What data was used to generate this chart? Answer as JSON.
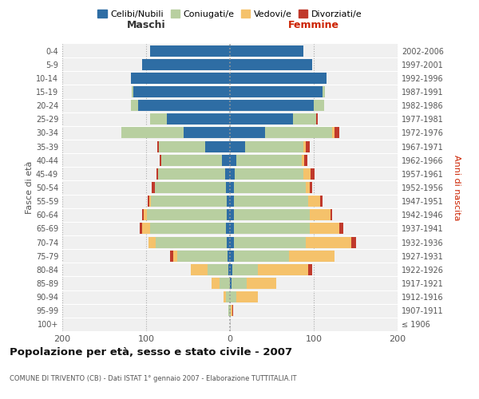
{
  "age_groups": [
    "100+",
    "95-99",
    "90-94",
    "85-89",
    "80-84",
    "75-79",
    "70-74",
    "65-69",
    "60-64",
    "55-59",
    "50-54",
    "45-49",
    "40-44",
    "35-39",
    "30-34",
    "25-29",
    "20-24",
    "15-19",
    "10-14",
    "5-9",
    "0-4"
  ],
  "birth_years": [
    "≤ 1906",
    "1907-1911",
    "1912-1916",
    "1917-1921",
    "1922-1926",
    "1927-1931",
    "1932-1936",
    "1937-1941",
    "1942-1946",
    "1947-1951",
    "1952-1956",
    "1957-1961",
    "1962-1966",
    "1967-1971",
    "1972-1976",
    "1977-1981",
    "1982-1986",
    "1987-1991",
    "1992-1996",
    "1997-2001",
    "2002-2006"
  ],
  "male": {
    "celibi": [
      0,
      0,
      0,
      0,
      2,
      3,
      4,
      5,
      4,
      4,
      5,
      6,
      10,
      30,
      55,
      75,
      110,
      115,
      118,
      105,
      95
    ],
    "coniugati": [
      0,
      2,
      5,
      12,
      25,
      60,
      85,
      90,
      95,
      90,
      85,
      80,
      72,
      55,
      75,
      20,
      8,
      2,
      0,
      0,
      0
    ],
    "vedovi": [
      0,
      0,
      3,
      10,
      20,
      5,
      8,
      10,
      4,
      2,
      0,
      0,
      0,
      0,
      0,
      0,
      0,
      0,
      0,
      0,
      0
    ],
    "divorziati": [
      0,
      0,
      0,
      0,
      0,
      3,
      0,
      3,
      2,
      2,
      3,
      2,
      2,
      2,
      0,
      0,
      0,
      0,
      0,
      0,
      0
    ]
  },
  "female": {
    "nubili": [
      0,
      0,
      0,
      2,
      3,
      5,
      5,
      5,
      5,
      5,
      5,
      6,
      8,
      18,
      42,
      75,
      100,
      110,
      115,
      98,
      88
    ],
    "coniugate": [
      0,
      1,
      8,
      18,
      30,
      65,
      85,
      90,
      90,
      88,
      85,
      82,
      78,
      70,
      80,
      28,
      12,
      3,
      0,
      0,
      0
    ],
    "vedove": [
      0,
      2,
      25,
      35,
      60,
      55,
      55,
      35,
      25,
      15,
      5,
      8,
      3,
      2,
      3,
      0,
      0,
      0,
      0,
      0,
      0
    ],
    "divorziate": [
      0,
      1,
      0,
      0,
      5,
      0,
      5,
      5,
      2,
      2,
      3,
      5,
      3,
      5,
      5,
      2,
      0,
      0,
      0,
      0,
      0
    ]
  },
  "colors": {
    "celibi": "#2e6da4",
    "coniugati": "#b8cfa0",
    "vedovi": "#f5c26b",
    "divorziati": "#c0392b"
  },
  "xlim": 200,
  "title": "Popolazione per età, sesso e stato civile - 2007",
  "subtitle": "COMUNE DI TRIVENTO (CB) - Dati ISTAT 1° gennaio 2007 - Elaborazione TUTTITALIA.IT",
  "ylabel_left": "Fasce di età",
  "ylabel_right": "Anni di nascita",
  "maschi_label": "Maschi",
  "femmine_label": "Femmine",
  "legend_labels": [
    "Celibi/Nubili",
    "Coniugati/e",
    "Vedovi/e",
    "Divorziati/e"
  ],
  "background_color": "#ffffff",
  "plot_bg_color": "#f0f0f0"
}
